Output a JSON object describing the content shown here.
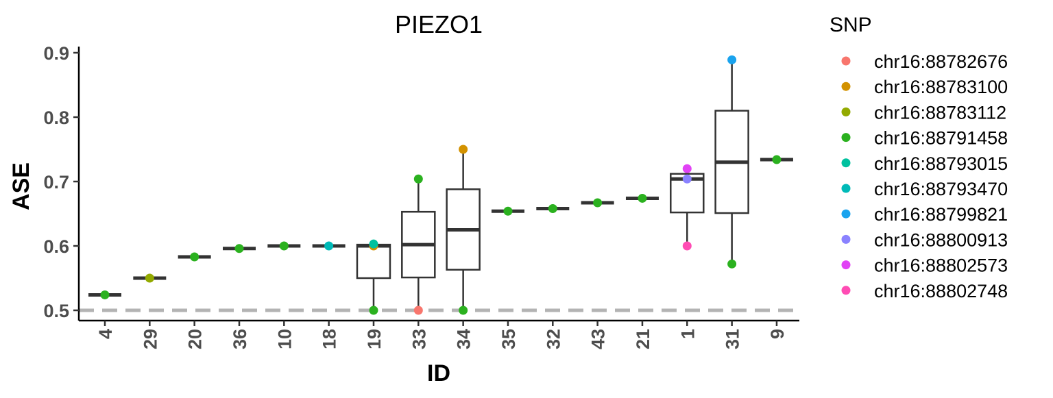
{
  "chart_data": {
    "type": "box",
    "title": "PIEZO1",
    "xlabel": "ID",
    "ylabel": "ASE",
    "ylim": [
      0.48,
      0.905
    ],
    "yticks": [
      0.5,
      0.6,
      0.7,
      0.8,
      0.9
    ],
    "ytick_labels": [
      "0.5",
      "0.6",
      "0.7",
      "0.8",
      "0.9"
    ],
    "reference_line": {
      "y": 0.5,
      "style": "dashed",
      "color": "#b3b3b3"
    },
    "grid": false,
    "legend": {
      "title": "SNP",
      "placement": "right",
      "entries": [
        {
          "label": "chr16:88782676",
          "color": "#F8766D"
        },
        {
          "label": "chr16:88783100",
          "color": "#D39200"
        },
        {
          "label": "chr16:88783112",
          "color": "#93AA00"
        },
        {
          "label": "chr16:88791458",
          "color": "#2BB11F"
        },
        {
          "label": "chr16:88793015",
          "color": "#00C19F"
        },
        {
          "label": "chr16:88793470",
          "color": "#00BAB8"
        },
        {
          "label": "chr16:88799821",
          "color": "#1AA3EE"
        },
        {
          "label": "chr16:88800913",
          "color": "#8A82FF"
        },
        {
          "label": "chr16:88802573",
          "color": "#E142F5"
        },
        {
          "label": "chr16:88802748",
          "color": "#FF4CB4"
        }
      ]
    },
    "categories": [
      "4",
      "29",
      "20",
      "36",
      "10",
      "18",
      "19",
      "33",
      "34",
      "35",
      "32",
      "43",
      "21",
      "1",
      "31",
      "9"
    ],
    "boxes": [
      {
        "id": "4",
        "min": 0.524,
        "q1": 0.524,
        "median": 0.524,
        "q3": 0.524,
        "max": 0.524
      },
      {
        "id": "29",
        "min": 0.55,
        "q1": 0.55,
        "median": 0.55,
        "q3": 0.55,
        "max": 0.55
      },
      {
        "id": "20",
        "min": 0.583,
        "q1": 0.583,
        "median": 0.583,
        "q3": 0.583,
        "max": 0.583
      },
      {
        "id": "36",
        "min": 0.596,
        "q1": 0.596,
        "median": 0.596,
        "q3": 0.596,
        "max": 0.596
      },
      {
        "id": "10",
        "min": 0.6,
        "q1": 0.6,
        "median": 0.6,
        "q3": 0.6,
        "max": 0.6
      },
      {
        "id": "18",
        "min": 0.6,
        "q1": 0.6,
        "median": 0.6,
        "q3": 0.6,
        "max": 0.6
      },
      {
        "id": "19",
        "min": 0.5,
        "q1": 0.55,
        "median": 0.6,
        "q3": 0.602,
        "max": 0.602
      },
      {
        "id": "33",
        "min": 0.5,
        "q1": 0.551,
        "median": 0.602,
        "q3": 0.653,
        "max": 0.704
      },
      {
        "id": "34",
        "min": 0.5,
        "q1": 0.563,
        "median": 0.625,
        "q3": 0.688,
        "max": 0.75
      },
      {
        "id": "35",
        "min": 0.654,
        "q1": 0.654,
        "median": 0.654,
        "q3": 0.654,
        "max": 0.654
      },
      {
        "id": "32",
        "min": 0.658,
        "q1": 0.658,
        "median": 0.658,
        "q3": 0.658,
        "max": 0.658
      },
      {
        "id": "43",
        "min": 0.667,
        "q1": 0.667,
        "median": 0.667,
        "q3": 0.667,
        "max": 0.667
      },
      {
        "id": "21",
        "min": 0.674,
        "q1": 0.674,
        "median": 0.674,
        "q3": 0.674,
        "max": 0.674
      },
      {
        "id": "1",
        "min": 0.6,
        "q1": 0.652,
        "median": 0.704,
        "q3": 0.712,
        "max": 0.72
      },
      {
        "id": "31",
        "min": 0.572,
        "q1": 0.651,
        "median": 0.73,
        "q3": 0.81,
        "max": 0.889
      },
      {
        "id": "9",
        "min": 0.734,
        "q1": 0.734,
        "median": 0.734,
        "q3": 0.734,
        "max": 0.734
      }
    ],
    "points": [
      {
        "id": "4",
        "y": 0.524,
        "snp": "chr16:88791458"
      },
      {
        "id": "29",
        "y": 0.55,
        "snp": "chr16:88783112"
      },
      {
        "id": "20",
        "y": 0.583,
        "snp": "chr16:88791458"
      },
      {
        "id": "36",
        "y": 0.596,
        "snp": "chr16:88791458"
      },
      {
        "id": "10",
        "y": 0.6,
        "snp": "chr16:88791458"
      },
      {
        "id": "18",
        "y": 0.6,
        "snp": "chr16:88793470"
      },
      {
        "id": "19",
        "y": 0.5,
        "snp": "chr16:88791458"
      },
      {
        "id": "19",
        "y": 0.6,
        "snp": "chr16:88783100"
      },
      {
        "id": "19",
        "y": 0.603,
        "snp": "chr16:88793015"
      },
      {
        "id": "33",
        "y": 0.5,
        "snp": "chr16:88782676"
      },
      {
        "id": "33",
        "y": 0.704,
        "snp": "chr16:88791458"
      },
      {
        "id": "34",
        "y": 0.5,
        "snp": "chr16:88791458"
      },
      {
        "id": "34",
        "y": 0.75,
        "snp": "chr16:88783100"
      },
      {
        "id": "35",
        "y": 0.654,
        "snp": "chr16:88791458"
      },
      {
        "id": "32",
        "y": 0.658,
        "snp": "chr16:88791458"
      },
      {
        "id": "43",
        "y": 0.667,
        "snp": "chr16:88791458"
      },
      {
        "id": "21",
        "y": 0.674,
        "snp": "chr16:88791458"
      },
      {
        "id": "1",
        "y": 0.6,
        "snp": "chr16:88802748"
      },
      {
        "id": "1",
        "y": 0.704,
        "snp": "chr16:88800913"
      },
      {
        "id": "1",
        "y": 0.72,
        "snp": "chr16:88802573"
      },
      {
        "id": "31",
        "y": 0.572,
        "snp": "chr16:88791458"
      },
      {
        "id": "31",
        "y": 0.889,
        "snp": "chr16:88799821"
      },
      {
        "id": "9",
        "y": 0.734,
        "snp": "chr16:88791458"
      }
    ]
  }
}
